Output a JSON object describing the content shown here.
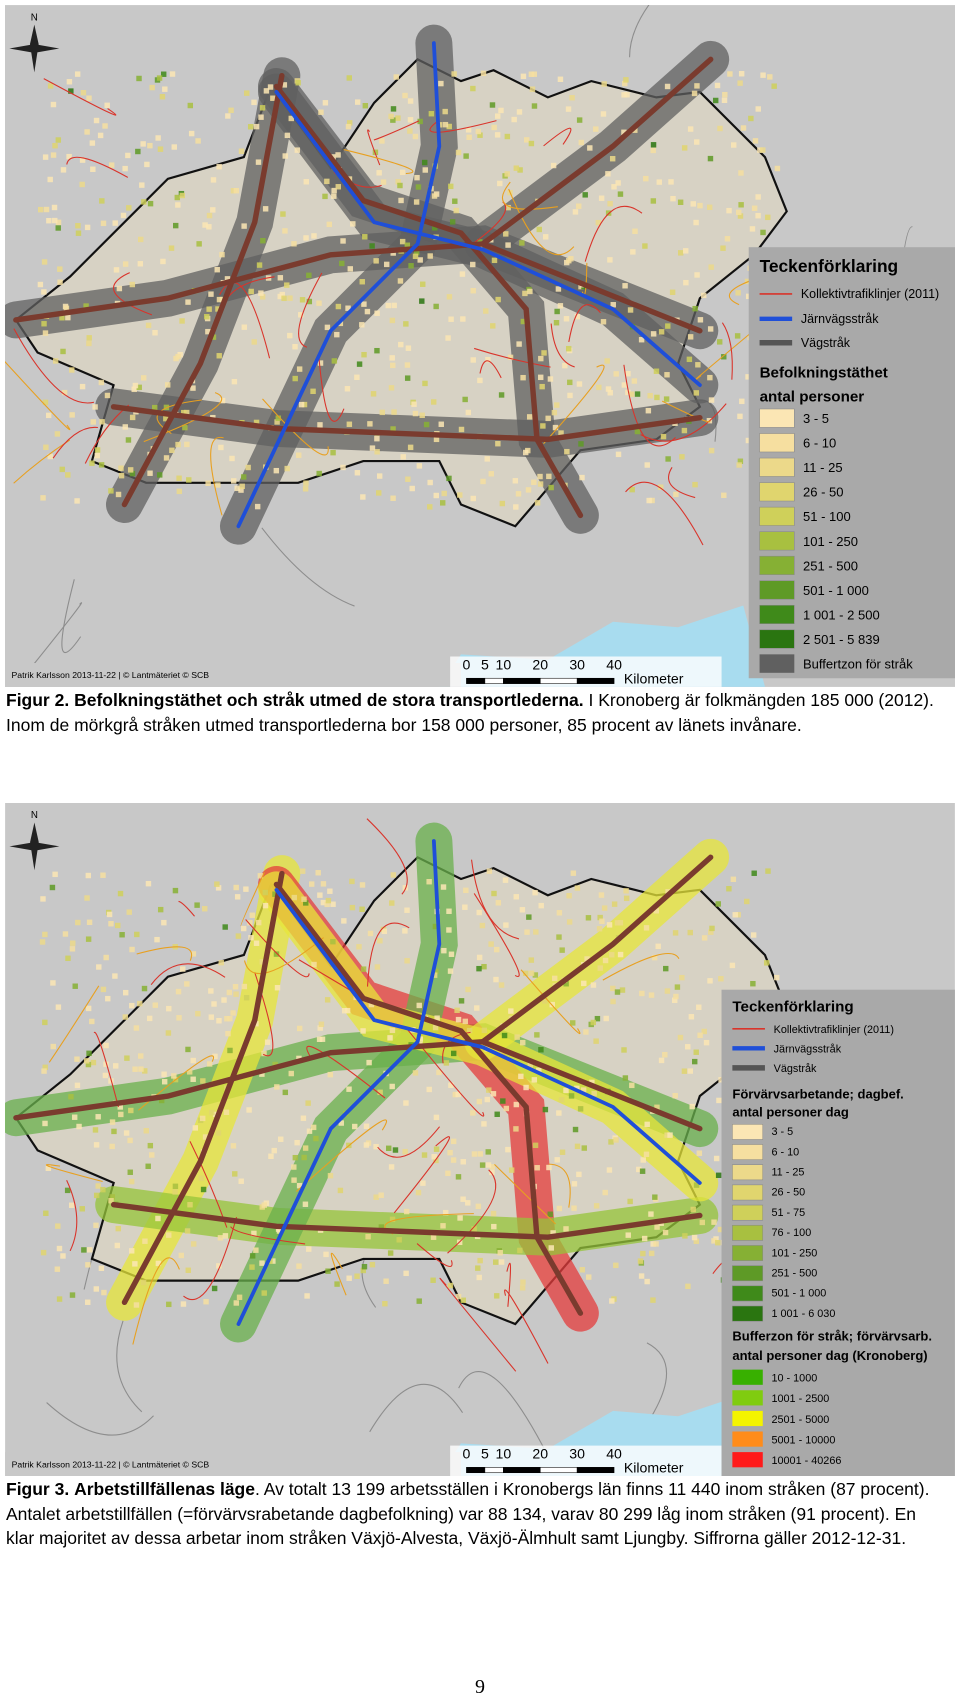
{
  "figures": [
    {
      "map": {
        "north": "N",
        "credit": "Patrik Karlsson 2013-11-22 | © Lantmäteriet © SCB",
        "scale": [
          "0",
          "5",
          "10",
          "20",
          "30",
          "40"
        ],
        "scale_unit": "Kilometer",
        "legend": {
          "title": "Teckenförklaring",
          "lines": [
            "Kollektivtrafiklinjer (2011)",
            "Järnvägsstråk",
            "Vägstråk"
          ],
          "section": "Befolkningstäthet",
          "subsection": "antal personer",
          "classes": [
            "3 - 5",
            "6 - 10",
            "11 - 25",
            "26 - 50",
            "51 - 100",
            "101 - 250",
            "251 - 500",
            "501 - 1 000",
            "1 001 - 2 500",
            "2 501 - 5 839"
          ],
          "buffer": "Buffertzon för stråk"
        }
      },
      "caption": {
        "label": "Figur 2.",
        "bold": "Befolkningstäthet och stråk utmed de stora transportlederna.",
        "text": "I Kronoberg är folkmängden 185 000 (2012). Inom de mörkgrå stråken utmed transportlederna bor 158 000 personer, 85 procent av länets invånare."
      }
    },
    {
      "map": {
        "north": "N",
        "credit": "Patrik Karlsson 2013-11-22 | © Lantmäteriet © SCB",
        "scale": [
          "0",
          "5",
          "10",
          "20",
          "30",
          "40"
        ],
        "scale_unit": "Kilometer",
        "legend": {
          "title": "Teckenförklaring",
          "lines": [
            "Kollektivtrafiklinjer (2011)",
            "Järnvägsstråk",
            "Vägstråk"
          ],
          "section": "Förvärvsarbetande; dagbef.",
          "subsection": "antal personer dag",
          "classes": [
            "3 - 5",
            "6 - 10",
            "11 - 25",
            "26 - 50",
            "51 - 75",
            "76 - 100",
            "101 - 250",
            "251 - 500",
            "501 - 1 000",
            "1 001 - 6 030"
          ],
          "buffer_title": "Bufferzon för stråk; förvärvsarb.",
          "buffer_subtitle": "antal personer dag (Kronoberg)",
          "buffer_classes": [
            "10 - 1000",
            "1001 - 2500",
            "2501 - 5000",
            "5001 - 10000",
            "10001 - 40266"
          ]
        }
      },
      "caption": {
        "label": "Figur 3.",
        "bold": "Arbetstillfällenas läge",
        "text": ". Av totalt 13 199 arbetsställen i Kronobergs län finns 11 440 inom stråken (87 procent). Antalet arbetstillfällen (=förvärvsrabetande dagbefolkning) var 88 134, varav 80 299 låg inom stråken (91 procent). En klar majoritet av dessa arbetar inom stråken Växjö-Alvesta, Växjö-Älmhult samt Ljungby. Siffrorna gäller 2012-12-31."
      }
    }
  ],
  "page_number": "9"
}
